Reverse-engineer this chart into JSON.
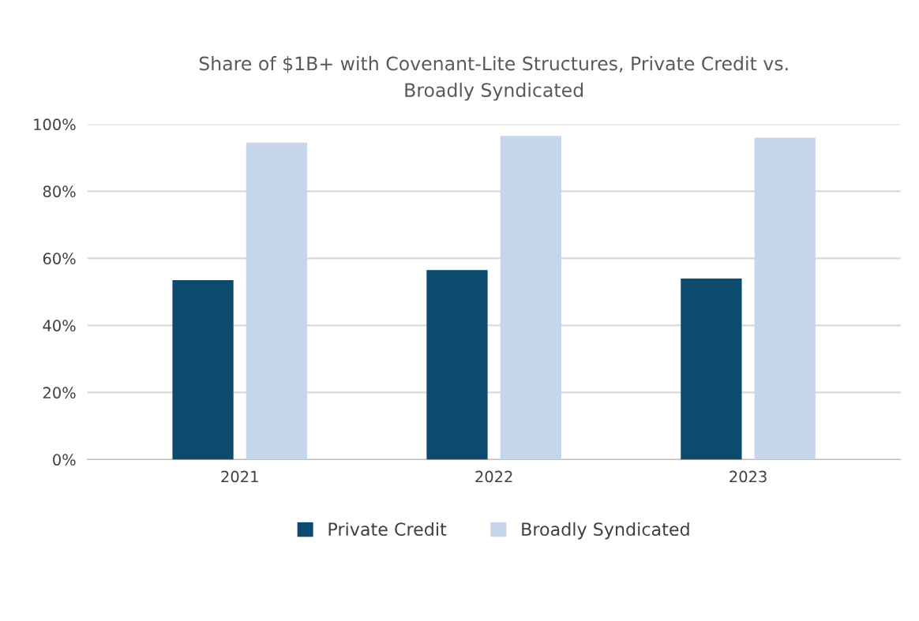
{
  "chart_data": {
    "type": "bar",
    "title": "Share of $1B+ with Covenant-Lite Structures, Private Credit vs.\nBroadly Syndicated",
    "categories": [
      "2021",
      "2022",
      "2023"
    ],
    "series": [
      {
        "name": "Private Credit",
        "color": "#0c4a6e",
        "values": [
          53.5,
          56.5,
          54
        ]
      },
      {
        "name": "Broadly Syndicated",
        "color": "#c5d6ec",
        "values": [
          94.5,
          96.5,
          96
        ]
      }
    ],
    "ylim": [
      0,
      100
    ],
    "yticks": [
      {
        "value": 0,
        "label": "0%"
      },
      {
        "value": 20,
        "label": "20%"
      },
      {
        "value": 40,
        "label": "40%"
      },
      {
        "value": 60,
        "label": "60%"
      },
      {
        "value": 80,
        "label": "80%"
      },
      {
        "value": 100,
        "label": "100%"
      }
    ],
    "grid": "y",
    "legend": "bottom"
  }
}
